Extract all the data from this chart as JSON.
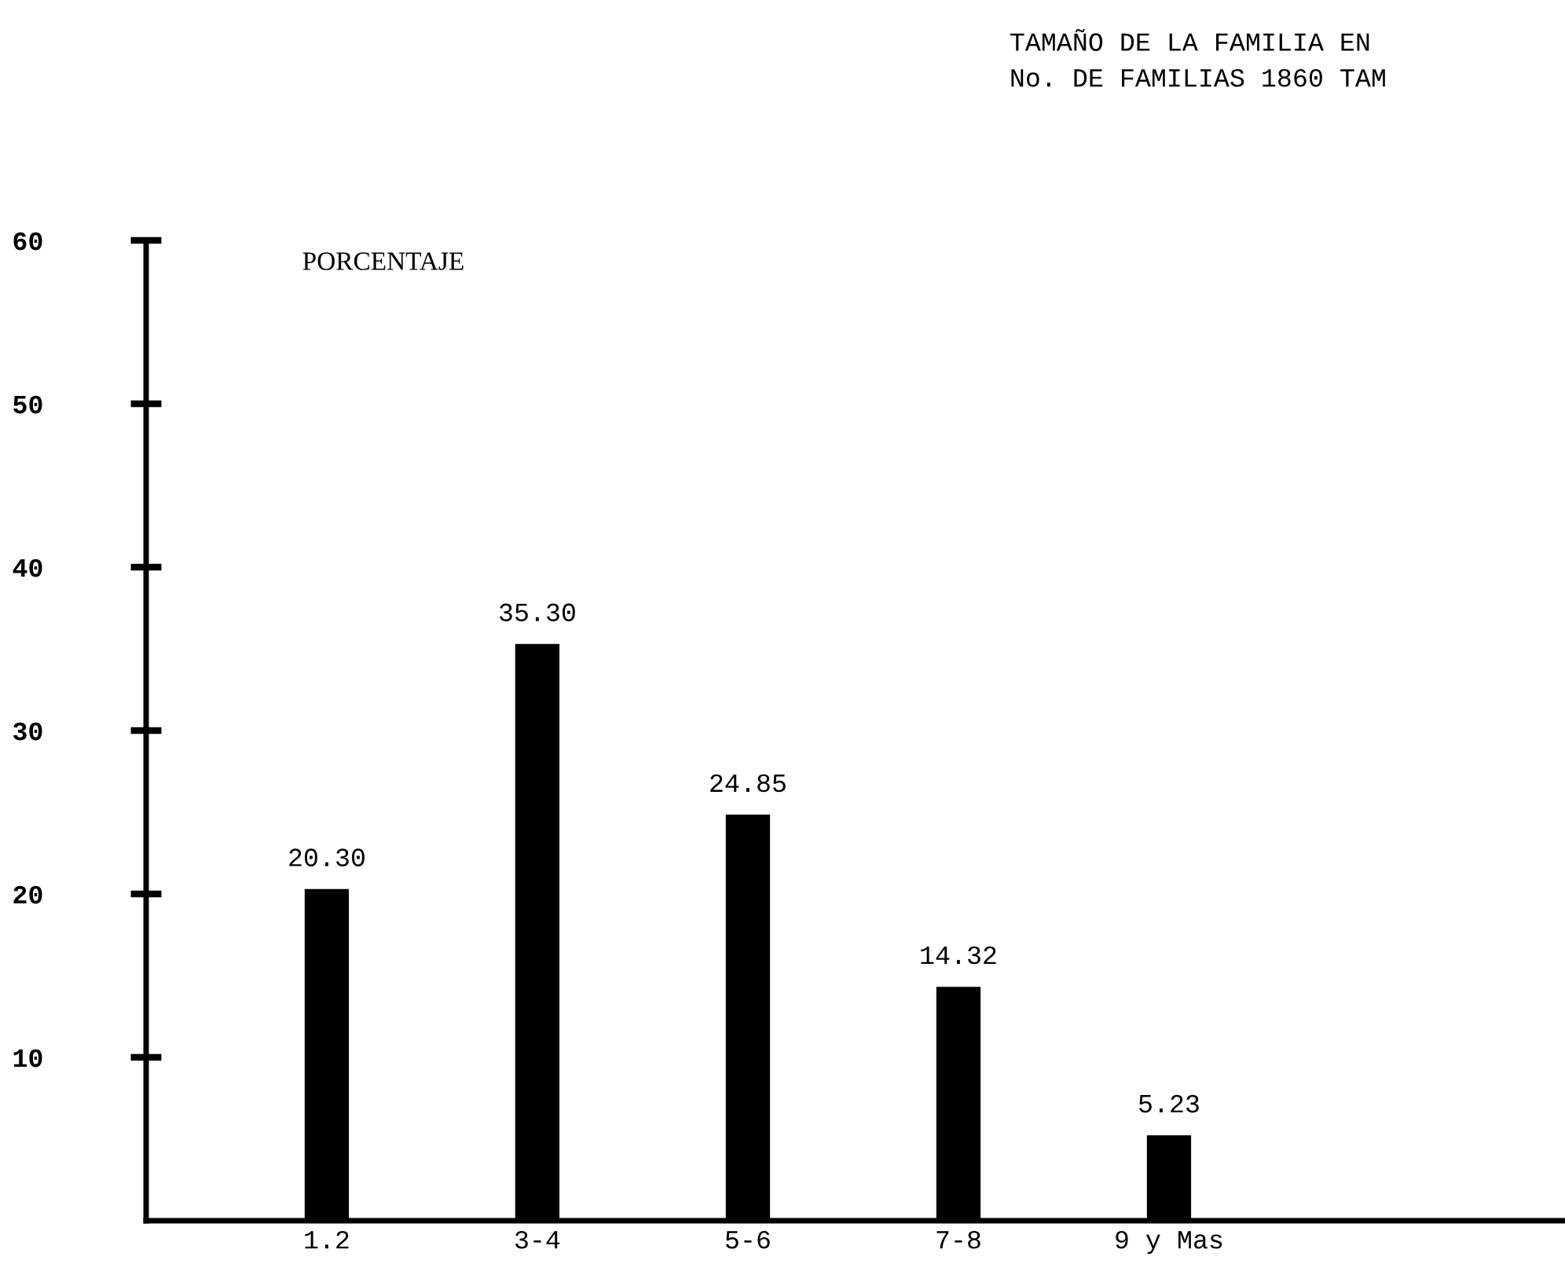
{
  "chart_data": {
    "type": "bar",
    "title": "TAMAÑO DE LA FAMILIA EN\nNo. DE FAMILIAS 1860 TAM",
    "ylabel": "PORCENTAJE",
    "categories": [
      "1.2",
      "3-4",
      "5-6",
      "7-8",
      "9 y Mas"
    ],
    "values": [
      20.3,
      35.3,
      24.85,
      14.32,
      5.23
    ],
    "value_labels": [
      "20.30",
      "35.30",
      "24.85",
      "14.32",
      "5.23"
    ],
    "color": "#000000",
    "ylim": [
      0,
      60
    ],
    "yticks": [
      10,
      20,
      30,
      40,
      50,
      60
    ],
    "grid": false,
    "legend": false
  }
}
